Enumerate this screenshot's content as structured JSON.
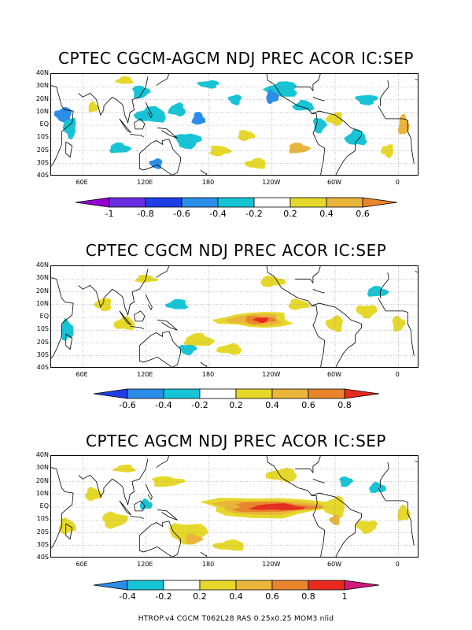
{
  "lat_labels": [
    "40N",
    "30N",
    "20N",
    "10N",
    "EQ",
    "10S",
    "20S",
    "30S",
    "40S"
  ],
  "lon_labels": [
    "60E",
    "120E",
    "180",
    "120W",
    "60W",
    "0"
  ],
  "lon_values": [
    60,
    120,
    180,
    240,
    300,
    360
  ],
  "map_extent": {
    "lon": [
      30,
      380
    ],
    "lat": [
      -40,
      40
    ]
  },
  "colors": {
    "neg_1": "#9400d3",
    "neg_08": "#1f3fe6",
    "neg_06": "#2a8de8",
    "neg_04": "#17c4d6",
    "pos_02": "#e6d82a",
    "pos_04": "#e9b53a",
    "pos_06": "#e8842c",
    "pos_08": "#e82a1e",
    "pos_1": "#d4197c",
    "land": "#000000",
    "grid": "#888888"
  },
  "panels": [
    {
      "title": "CPTEC CGCM-AGCM NDJ PREC ACOR IC:SEP",
      "colorbar": {
        "ticks": [
          "-1",
          "-0.8",
          "-0.6",
          "-0.4",
          "-0.2",
          "0.2",
          "0.4",
          "0.6"
        ],
        "bins": [
          "#9400d3",
          "#6a2ee0",
          "#1f3fe6",
          "#2a8de8",
          "#17c4d6",
          "#ffffff",
          "#e6d82a",
          "#e9b53a",
          "#e8842c"
        ]
      },
      "blobs": [
        {
          "lon": 42,
          "lat": 8,
          "rx": 8,
          "ry": 6,
          "c": "neg_06"
        },
        {
          "lon": 48,
          "lat": -2,
          "rx": 6,
          "ry": 8,
          "c": "neg_04"
        },
        {
          "lon": 70,
          "lat": 14,
          "rx": 5,
          "ry": 4,
          "c": "pos_02"
        },
        {
          "lon": 95,
          "lat": -18,
          "rx": 10,
          "ry": 4,
          "c": "neg_04"
        },
        {
          "lon": 115,
          "lat": 26,
          "rx": 8,
          "ry": 5,
          "c": "neg_04"
        },
        {
          "lon": 125,
          "lat": 8,
          "rx": 15,
          "ry": 6,
          "c": "neg_04"
        },
        {
          "lon": 150,
          "lat": 12,
          "rx": 8,
          "ry": 5,
          "c": "neg_04"
        },
        {
          "lon": 160,
          "lat": -12,
          "rx": 12,
          "ry": 6,
          "c": "neg_04"
        },
        {
          "lon": 170,
          "lat": 5,
          "rx": 6,
          "ry": 5,
          "c": "neg_06"
        },
        {
          "lon": 130,
          "lat": -30,
          "rx": 6,
          "ry": 4,
          "c": "neg_06"
        },
        {
          "lon": 190,
          "lat": -20,
          "rx": 10,
          "ry": 4,
          "c": "pos_02"
        },
        {
          "lon": 205,
          "lat": 20,
          "rx": 6,
          "ry": 4,
          "c": "neg_04"
        },
        {
          "lon": 215,
          "lat": -8,
          "rx": 8,
          "ry": 4,
          "c": "pos_02"
        },
        {
          "lon": 250,
          "lat": 28,
          "rx": 15,
          "ry": 6,
          "c": "neg_04"
        },
        {
          "lon": 240,
          "lat": 22,
          "rx": 6,
          "ry": 5,
          "c": "neg_06"
        },
        {
          "lon": 270,
          "lat": 15,
          "rx": 10,
          "ry": 4,
          "c": "neg_04"
        },
        {
          "lon": 265,
          "lat": -18,
          "rx": 10,
          "ry": 4,
          "c": "pos_04"
        },
        {
          "lon": 285,
          "lat": 0,
          "rx": 6,
          "ry": 6,
          "c": "neg_04"
        },
        {
          "lon": 300,
          "lat": 5,
          "rx": 8,
          "ry": 5,
          "c": "pos_02"
        },
        {
          "lon": 320,
          "lat": -10,
          "rx": 10,
          "ry": 6,
          "c": "neg_04"
        },
        {
          "lon": 330,
          "lat": 20,
          "rx": 10,
          "ry": 4,
          "c": "neg_04"
        },
        {
          "lon": 350,
          "lat": -20,
          "rx": 6,
          "ry": 5,
          "c": "pos_02"
        },
        {
          "lon": 365,
          "lat": 0,
          "rx": 5,
          "ry": 8,
          "c": "pos_04"
        },
        {
          "lon": 100,
          "lat": 35,
          "rx": 8,
          "ry": 3,
          "c": "pos_02"
        },
        {
          "lon": 180,
          "lat": 32,
          "rx": 10,
          "ry": 3,
          "c": "neg_04"
        },
        {
          "lon": 225,
          "lat": -30,
          "rx": 10,
          "ry": 4,
          "c": "pos_02"
        }
      ]
    },
    {
      "title": "CPTEC CGCM NDJ PREC ACOR IC:SEP",
      "colorbar": {
        "ticks": [
          "-0.6",
          "-0.4",
          "-0.2",
          "0.2",
          "0.4",
          "0.6",
          "0.8"
        ],
        "bins": [
          "#1f3fe6",
          "#2a8de8",
          "#17c4d6",
          "#ffffff",
          "#e6d82a",
          "#e9b53a",
          "#e8842c",
          "#e82a1e"
        ]
      },
      "blobs": [
        {
          "lon": 225,
          "lat": -2,
          "rx": 35,
          "ry": 6,
          "c": "pos_02"
        },
        {
          "lon": 225,
          "lat": -2,
          "rx": 25,
          "ry": 4.5,
          "c": "pos_04"
        },
        {
          "lon": 228,
          "lat": -2,
          "rx": 15,
          "ry": 3,
          "c": "pos_06"
        },
        {
          "lon": 230,
          "lat": -2,
          "rx": 7,
          "ry": 2,
          "c": "pos_08"
        },
        {
          "lon": 170,
          "lat": -18,
          "rx": 14,
          "ry": 5,
          "c": "pos_02"
        },
        {
          "lon": 200,
          "lat": -25,
          "rx": 12,
          "ry": 4,
          "c": "pos_02"
        },
        {
          "lon": 100,
          "lat": -5,
          "rx": 10,
          "ry": 5,
          "c": "pos_02"
        },
        {
          "lon": 80,
          "lat": 10,
          "rx": 8,
          "ry": 5,
          "c": "pos_02"
        },
        {
          "lon": 45,
          "lat": -10,
          "rx": 6,
          "ry": 8,
          "c": "neg_04"
        },
        {
          "lon": 150,
          "lat": 10,
          "rx": 10,
          "ry": 4,
          "c": "neg_04"
        },
        {
          "lon": 160,
          "lat": -25,
          "rx": 8,
          "ry": 4,
          "c": "neg_04"
        },
        {
          "lon": 265,
          "lat": 10,
          "rx": 10,
          "ry": 4,
          "c": "pos_02"
        },
        {
          "lon": 300,
          "lat": -5,
          "rx": 8,
          "ry": 6,
          "c": "pos_02"
        },
        {
          "lon": 330,
          "lat": 5,
          "rx": 10,
          "ry": 5,
          "c": "pos_02"
        },
        {
          "lon": 340,
          "lat": 20,
          "rx": 10,
          "ry": 4,
          "c": "neg_04"
        },
        {
          "lon": 360,
          "lat": -5,
          "rx": 6,
          "ry": 6,
          "c": "pos_02"
        },
        {
          "lon": 240,
          "lat": 28,
          "rx": 12,
          "ry": 4,
          "c": "pos_02"
        },
        {
          "lon": 120,
          "lat": 30,
          "rx": 10,
          "ry": 3,
          "c": "pos_02"
        }
      ]
    },
    {
      "title": "CPTEC AGCM NDJ PREC ACOR IC:SEP",
      "colorbar": {
        "ticks": [
          "-0.4",
          "-0.2",
          "0.2",
          "0.4",
          "0.6",
          "0.8",
          "1"
        ],
        "bins": [
          "#2a8de8",
          "#17c4d6",
          "#ffffff",
          "#e6d82a",
          "#e9b53a",
          "#e8842c",
          "#e82a1e",
          "#d4197c"
        ]
      },
      "blobs": [
        {
          "lon": 235,
          "lat": 0,
          "rx": 60,
          "ry": 8,
          "c": "pos_02"
        },
        {
          "lon": 235,
          "lat": 0,
          "rx": 50,
          "ry": 5.5,
          "c": "pos_04"
        },
        {
          "lon": 240,
          "lat": 0,
          "rx": 40,
          "ry": 4,
          "c": "pos_06"
        },
        {
          "lon": 245,
          "lat": 0,
          "rx": 25,
          "ry": 2.5,
          "c": "pos_08"
        },
        {
          "lon": 160,
          "lat": -20,
          "rx": 18,
          "ry": 8,
          "c": "pos_02"
        },
        {
          "lon": 165,
          "lat": -25,
          "rx": 8,
          "ry": 4,
          "c": "pos_04"
        },
        {
          "lon": 200,
          "lat": -30,
          "rx": 15,
          "ry": 4,
          "c": "pos_02"
        },
        {
          "lon": 90,
          "lat": -10,
          "rx": 12,
          "ry": 6,
          "c": "pos_02"
        },
        {
          "lon": 70,
          "lat": 10,
          "rx": 8,
          "ry": 5,
          "c": "pos_02"
        },
        {
          "lon": 45,
          "lat": -15,
          "rx": 8,
          "ry": 6,
          "c": "pos_02"
        },
        {
          "lon": 140,
          "lat": 20,
          "rx": 15,
          "ry": 4,
          "c": "pos_02"
        },
        {
          "lon": 120,
          "lat": 2,
          "rx": 6,
          "ry": 4,
          "c": "neg_04"
        },
        {
          "lon": 250,
          "lat": 25,
          "rx": 15,
          "ry": 5,
          "c": "pos_02"
        },
        {
          "lon": 300,
          "lat": 0,
          "rx": 10,
          "ry": 8,
          "c": "pos_02"
        },
        {
          "lon": 300,
          "lat": -10,
          "rx": 5,
          "ry": 4,
          "c": "pos_04"
        },
        {
          "lon": 330,
          "lat": -15,
          "rx": 10,
          "ry": 5,
          "c": "pos_02"
        },
        {
          "lon": 340,
          "lat": 15,
          "rx": 8,
          "ry": 4,
          "c": "neg_04"
        },
        {
          "lon": 310,
          "lat": 20,
          "rx": 6,
          "ry": 4,
          "c": "neg_04"
        },
        {
          "lon": 365,
          "lat": -5,
          "rx": 6,
          "ry": 6,
          "c": "pos_02"
        },
        {
          "lon": 100,
          "lat": 30,
          "rx": 10,
          "ry": 3,
          "c": "pos_02"
        }
      ]
    }
  ],
  "footer": "HTROP.v4  CGCM  T062L28  RAS  0.25x0.25  MOM3  nlid"
}
